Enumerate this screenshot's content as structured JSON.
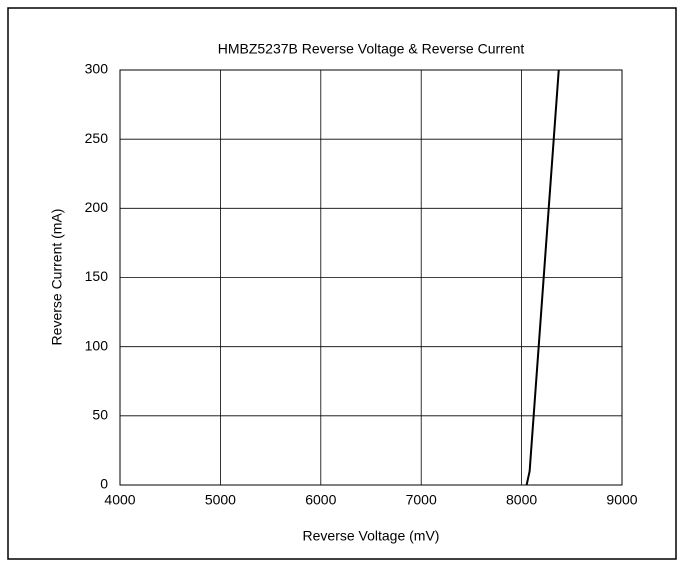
{
  "chart_data": {
    "type": "line",
    "title": "HMBZ5237B Reverse Voltage & Reverse Current",
    "x_label": "Reverse Voltage (mV)",
    "y_label": "Reverse Current (mA)",
    "x": [
      8050,
      8080,
      8140,
      8200,
      8280,
      8370
    ],
    "series": [
      {
        "name": "Reverse Current",
        "color": "#000000",
        "values": [
          0,
          10,
          70,
          130,
          210,
          300
        ]
      }
    ],
    "xlim": [
      4000,
      9000
    ],
    "xticks": [
      4000,
      5000,
      6000,
      7000,
      8000,
      9000
    ],
    "ylim": [
      0,
      300
    ],
    "yticks": [
      0,
      50,
      100,
      150,
      200,
      250,
      300
    ],
    "grid": true
  }
}
